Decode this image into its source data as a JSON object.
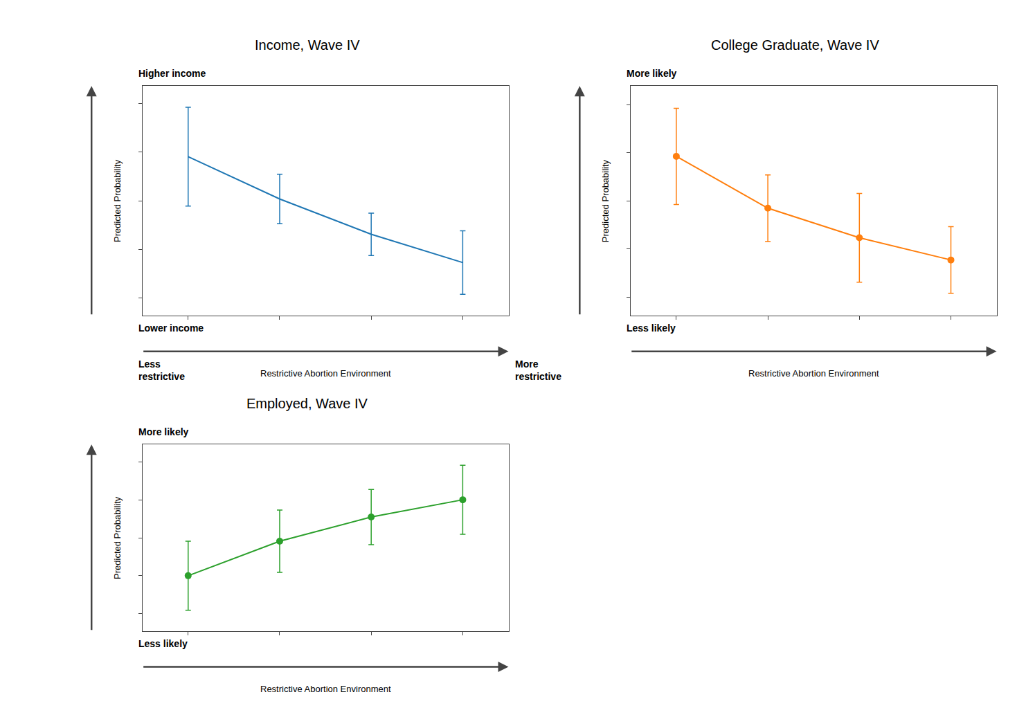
{
  "chart_data": [
    {
      "type": "line",
      "title": "Income, Wave IV",
      "xlabel": "Restrictive Abortion Environment",
      "ylabel": "Predicted Probability",
      "annotations": {
        "y_high": "Higher income",
        "y_low": "Lower income",
        "x_low": "Less\nrestrictive",
        "x_high": "More\nrestrictive"
      },
      "x": [
        1,
        2,
        3,
        4
      ],
      "values": [
        0.62,
        0.5,
        0.4,
        0.32
      ],
      "yerr": [
        0.14,
        0.07,
        0.06,
        0.09
      ],
      "marker": "none",
      "xlim": [
        0.5,
        4.5
      ],
      "xticks": [
        1,
        2,
        3,
        4
      ],
      "ylim": [
        0.17,
        0.82
      ],
      "yticks": [
        0.22,
        0.3575,
        0.495,
        0.6325,
        0.77
      ],
      "grid": false,
      "tick_labels": false
    },
    {
      "type": "line",
      "title": "College Graduate, Wave IV",
      "xlabel": "Restrictive Abortion Environment",
      "ylabel": "Predicted Probability",
      "annotations": {
        "y_high": "More likely",
        "y_low": "Less likely"
      },
      "x": [
        1,
        2,
        3,
        4
      ],
      "values": [
        0.72,
        0.58,
        0.5,
        0.44
      ],
      "yerr": [
        0.13,
        0.09,
        0.12,
        0.09
      ],
      "marker": "circle",
      "xlim": [
        0.5,
        4.5
      ],
      "xticks": [
        1,
        2,
        3,
        4
      ],
      "ylim": [
        0.29,
        0.91
      ],
      "yticks": [
        0.34,
        0.47,
        0.6,
        0.73,
        0.86
      ],
      "grid": false,
      "tick_labels": false
    },
    {
      "type": "line",
      "title": "Employed, Wave IV",
      "xlabel": "Restrictive Abortion Environment",
      "ylabel": "Predicted Probability",
      "annotations": {
        "y_high": "More likely",
        "y_low": "Less likely"
      },
      "x": [
        1,
        2,
        3,
        4
      ],
      "values": [
        0.44,
        0.54,
        0.61,
        0.66
      ],
      "yerr": [
        0.1,
        0.09,
        0.08,
        0.1
      ],
      "marker": "circle",
      "xlim": [
        0.5,
        4.5
      ],
      "xticks": [
        1,
        2,
        3,
        4
      ],
      "ylim": [
        0.28,
        0.82
      ],
      "yticks": [
        0.33,
        0.44,
        0.55,
        0.66,
        0.77
      ],
      "grid": false,
      "tick_labels": false
    }
  ]
}
